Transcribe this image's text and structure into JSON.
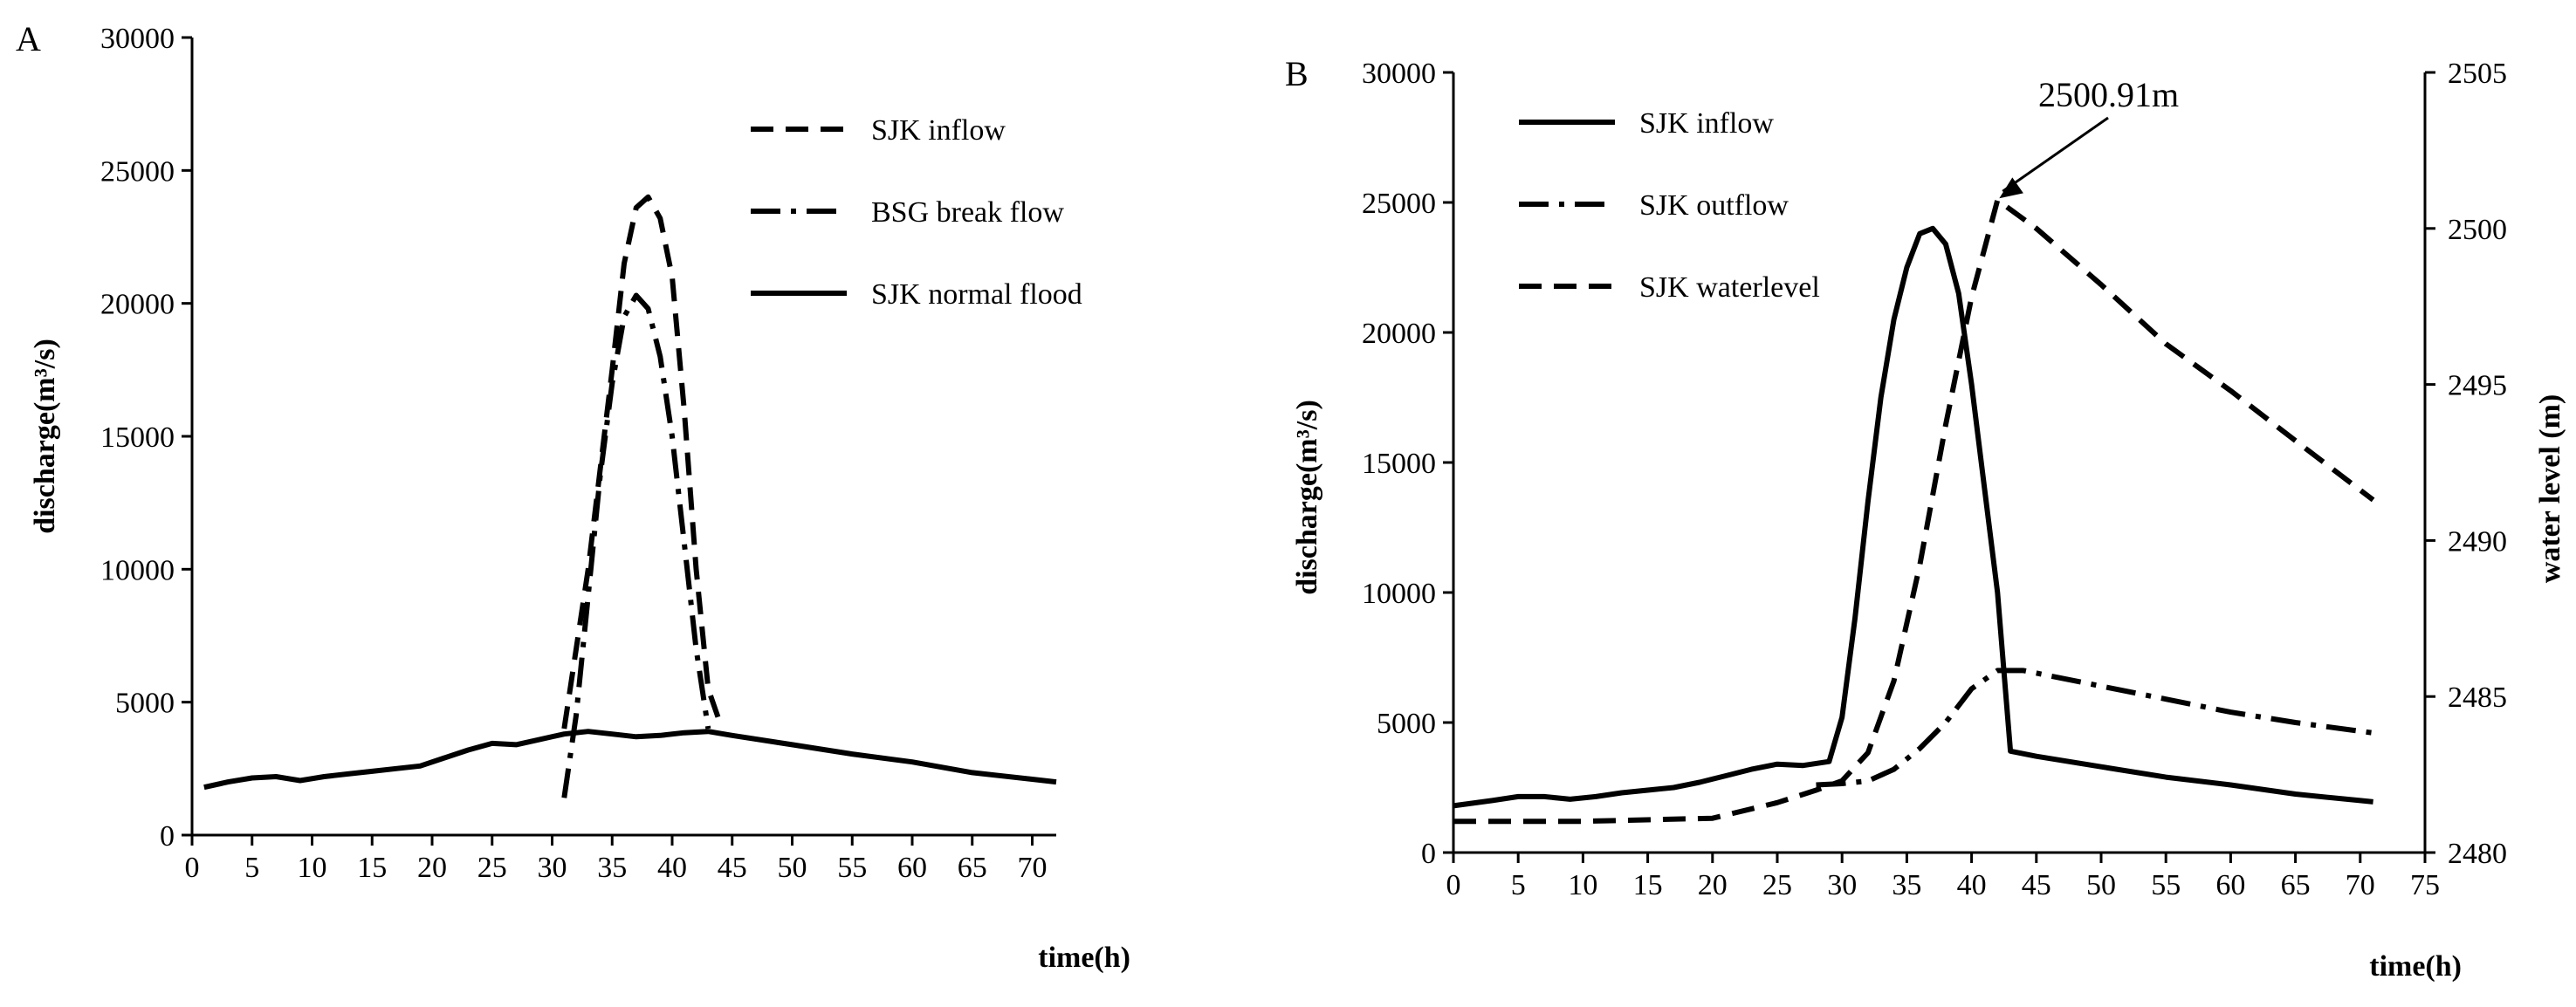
{
  "chart_data": [
    {
      "panel": "A",
      "type": "line",
      "ylabel": "discharge(m³/s)",
      "xlabel": "time(h)",
      "xlim": [
        0,
        72
      ],
      "ylim": [
        0,
        30000
      ],
      "xticks": [
        "0",
        "5",
        "10",
        "15",
        "20",
        "25",
        "30",
        "35",
        "40",
        "45",
        "50",
        "55",
        "60",
        "65",
        "70"
      ],
      "yticks": [
        "0",
        "5000",
        "10000",
        "15000",
        "20000",
        "25000",
        "30000"
      ],
      "legend_position": "top-right",
      "series": [
        {
          "name": "SJK inflow",
          "dash": "dash",
          "points": [
            [
              31,
              4000
            ],
            [
              33,
              10000
            ],
            [
              35,
              17500
            ],
            [
              36,
              21500
            ],
            [
              37,
              23600
            ],
            [
              38,
              24000
            ],
            [
              39,
              23200
            ],
            [
              40,
              21000
            ],
            [
              41,
              16000
            ],
            [
              42,
              10000
            ],
            [
              43,
              5500
            ],
            [
              44,
              4200
            ]
          ]
        },
        {
          "name": "BSG break flow",
          "dash": "dashdot",
          "points": [
            [
              31,
              1400
            ],
            [
              32,
              4500
            ],
            [
              33,
              9000
            ],
            [
              34,
              13500
            ],
            [
              35,
              17000
            ],
            [
              36,
              19500
            ],
            [
              37,
              20300
            ],
            [
              38,
              19800
            ],
            [
              39,
              18000
            ],
            [
              40,
              15000
            ],
            [
              41,
              11000
            ],
            [
              42,
              7000
            ],
            [
              43,
              4000
            ]
          ]
        },
        {
          "name": "SJK normal flood",
          "dash": "solid",
          "points": [
            [
              1,
              1800
            ],
            [
              3,
              2000
            ],
            [
              5,
              2150
            ],
            [
              7,
              2200
            ],
            [
              9,
              2050
            ],
            [
              11,
              2200
            ],
            [
              13,
              2300
            ],
            [
              15,
              2400
            ],
            [
              17,
              2500
            ],
            [
              19,
              2600
            ],
            [
              21,
              2900
            ],
            [
              23,
              3200
            ],
            [
              25,
              3450
            ],
            [
              27,
              3400
            ],
            [
              29,
              3600
            ],
            [
              31,
              3800
            ],
            [
              33,
              3900
            ],
            [
              35,
              3800
            ],
            [
              37,
              3700
            ],
            [
              39,
              3750
            ],
            [
              41,
              3850
            ],
            [
              43,
              3900
            ],
            [
              45,
              3750
            ],
            [
              50,
              3400
            ],
            [
              55,
              3050
            ],
            [
              60,
              2750
            ],
            [
              65,
              2350
            ],
            [
              70,
              2100
            ],
            [
              72,
              2000
            ]
          ]
        }
      ]
    },
    {
      "panel": "B",
      "type": "line",
      "ylabel": "discharge(m³/s)",
      "y2label": "water level (m)",
      "xlabel": "time(h)",
      "xlim": [
        0,
        75
      ],
      "ylim": [
        0,
        30000
      ],
      "y2lim": [
        2480,
        2505
      ],
      "xticks": [
        "0",
        "5",
        "10",
        "15",
        "20",
        "25",
        "30",
        "35",
        "40",
        "45",
        "50",
        "55",
        "60",
        "65",
        "70",
        "75"
      ],
      "yticks": [
        "0",
        "5000",
        "10000",
        "15000",
        "20000",
        "25000",
        "30000"
      ],
      "y2ticks": [
        "2480",
        "2485",
        "2490",
        "2495",
        "2500",
        "2505"
      ],
      "legend_position": "top-left",
      "annotation": "2500.91m",
      "series": [
        {
          "name": "SJK inflow",
          "dash": "solid",
          "axis": "left",
          "points": [
            [
              0,
              1800
            ],
            [
              3,
              2000
            ],
            [
              5,
              2150
            ],
            [
              7,
              2150
            ],
            [
              9,
              2050
            ],
            [
              11,
              2150
            ],
            [
              13,
              2300
            ],
            [
              15,
              2400
            ],
            [
              17,
              2500
            ],
            [
              19,
              2700
            ],
            [
              21,
              2950
            ],
            [
              23,
              3200
            ],
            [
              25,
              3400
            ],
            [
              27,
              3350
            ],
            [
              29,
              3500
            ],
            [
              30,
              5200
            ],
            [
              31,
              9000
            ],
            [
              32,
              13500
            ],
            [
              33,
              17500
            ],
            [
              34,
              20500
            ],
            [
              35,
              22500
            ],
            [
              36,
              23800
            ],
            [
              37,
              24000
            ],
            [
              38,
              23400
            ],
            [
              39,
              21500
            ],
            [
              40,
              18000
            ],
            [
              41,
              14000
            ],
            [
              42,
              10000
            ],
            [
              43,
              3900
            ],
            [
              45,
              3700
            ],
            [
              50,
              3300
            ],
            [
              55,
              2900
            ],
            [
              60,
              2600
            ],
            [
              65,
              2250
            ],
            [
              70,
              2000
            ],
            [
              71,
              1950
            ]
          ]
        },
        {
          "name": "SJK outflow",
          "dash": "dashdot",
          "axis": "left",
          "points": [
            [
              28,
              2600
            ],
            [
              30,
              2650
            ],
            [
              32,
              2750
            ],
            [
              34,
              3200
            ],
            [
              36,
              4000
            ],
            [
              38,
              5000
            ],
            [
              40,
              6300
            ],
            [
              42,
              7000
            ],
            [
              44,
              7000
            ],
            [
              50,
              6400
            ],
            [
              55,
              5900
            ],
            [
              60,
              5400
            ],
            [
              65,
              5000
            ],
            [
              71,
              4600
            ]
          ]
        },
        {
          "name": "SJK waterlevel",
          "dash": "dash",
          "axis": "right",
          "points": [
            [
              0,
              2481
            ],
            [
              10,
              2481
            ],
            [
              20,
              2481.1
            ],
            [
              25,
              2481.6
            ],
            [
              28,
              2482
            ],
            [
              30,
              2482.3
            ],
            [
              32,
              2483.2
            ],
            [
              34,
              2485.5
            ],
            [
              36,
              2489.2
            ],
            [
              38,
              2493.7
            ],
            [
              40,
              2497.8
            ],
            [
              42,
              2500.91
            ],
            [
              45,
              2500
            ],
            [
              50,
              2498.2
            ],
            [
              55,
              2496.3
            ],
            [
              60,
              2494.8
            ],
            [
              65,
              2493.2
            ],
            [
              71,
              2491.3
            ]
          ]
        }
      ]
    }
  ]
}
